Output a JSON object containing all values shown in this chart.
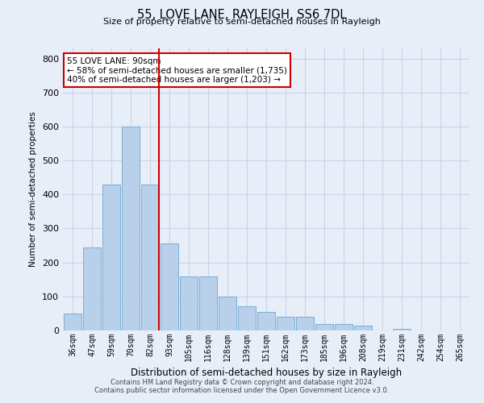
{
  "title": "55, LOVE LANE, RAYLEIGH, SS6 7DL",
  "subtitle": "Size of property relative to semi-detached houses in Rayleigh",
  "xlabel": "Distribution of semi-detached houses by size in Rayleigh",
  "ylabel": "Number of semi-detached properties",
  "categories": [
    "36sqm",
    "47sqm",
    "59sqm",
    "70sqm",
    "82sqm",
    "93sqm",
    "105sqm",
    "116sqm",
    "128sqm",
    "139sqm",
    "151sqm",
    "162sqm",
    "173sqm",
    "185sqm",
    "196sqm",
    "208sqm",
    "219sqm",
    "231sqm",
    "242sqm",
    "254sqm",
    "265sqm"
  ],
  "values": [
    50,
    245,
    430,
    600,
    430,
    255,
    160,
    160,
    100,
    70,
    55,
    40,
    40,
    20,
    20,
    15,
    0,
    5,
    0,
    0,
    0
  ],
  "bar_color": "#b8d0ea",
  "bar_edge_color": "#7aadd4",
  "vline_color": "#cc0000",
  "annotation_text_line1": "55 LOVE LANE: 90sqm",
  "annotation_text_line2": "← 58% of semi-detached houses are smaller (1,735)",
  "annotation_text_line3": "40% of semi-detached houses are larger (1,203) →",
  "annotation_box_color": "#ffffff",
  "annotation_box_edge": "#cc0000",
  "grid_color": "#c8d4e8",
  "background_color": "#e8eef8",
  "ylim": [
    0,
    830
  ],
  "yticks": [
    0,
    100,
    200,
    300,
    400,
    500,
    600,
    700,
    800
  ],
  "footer_line1": "Contains HM Land Registry data © Crown copyright and database right 2024.",
  "footer_line2": "Contains public sector information licensed under the Open Government Licence v3.0."
}
